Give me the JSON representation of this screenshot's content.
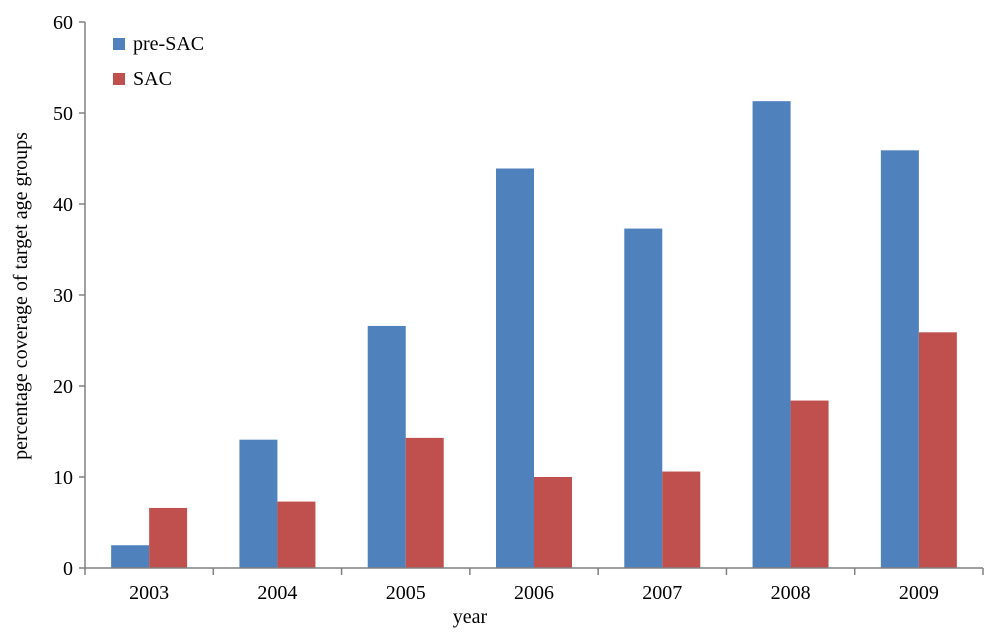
{
  "chart_data": {
    "type": "bar",
    "categories": [
      "2003",
      "2004",
      "2005",
      "2006",
      "2007",
      "2008",
      "2009"
    ],
    "series": [
      {
        "name": "pre-SAC",
        "values": [
          2.5,
          14.1,
          26.6,
          43.9,
          37.3,
          51.3,
          45.9
        ]
      },
      {
        "name": "SAC",
        "values": [
          6.6,
          7.3,
          14.3,
          10.0,
          10.6,
          18.4,
          25.9
        ]
      }
    ],
    "title": "",
    "xlabel": "year",
    "ylabel": "percentage coverage of target age groups",
    "ylim": [
      0,
      60
    ],
    "yticks": [
      "0",
      "10",
      "20",
      "30",
      "40",
      "50",
      "60"
    ],
    "grid": false,
    "legend": "top-left",
    "colors": {
      "pre-SAC": "#4f81bd",
      "SAC": "#c0504d",
      "axis": "#808080"
    }
  }
}
